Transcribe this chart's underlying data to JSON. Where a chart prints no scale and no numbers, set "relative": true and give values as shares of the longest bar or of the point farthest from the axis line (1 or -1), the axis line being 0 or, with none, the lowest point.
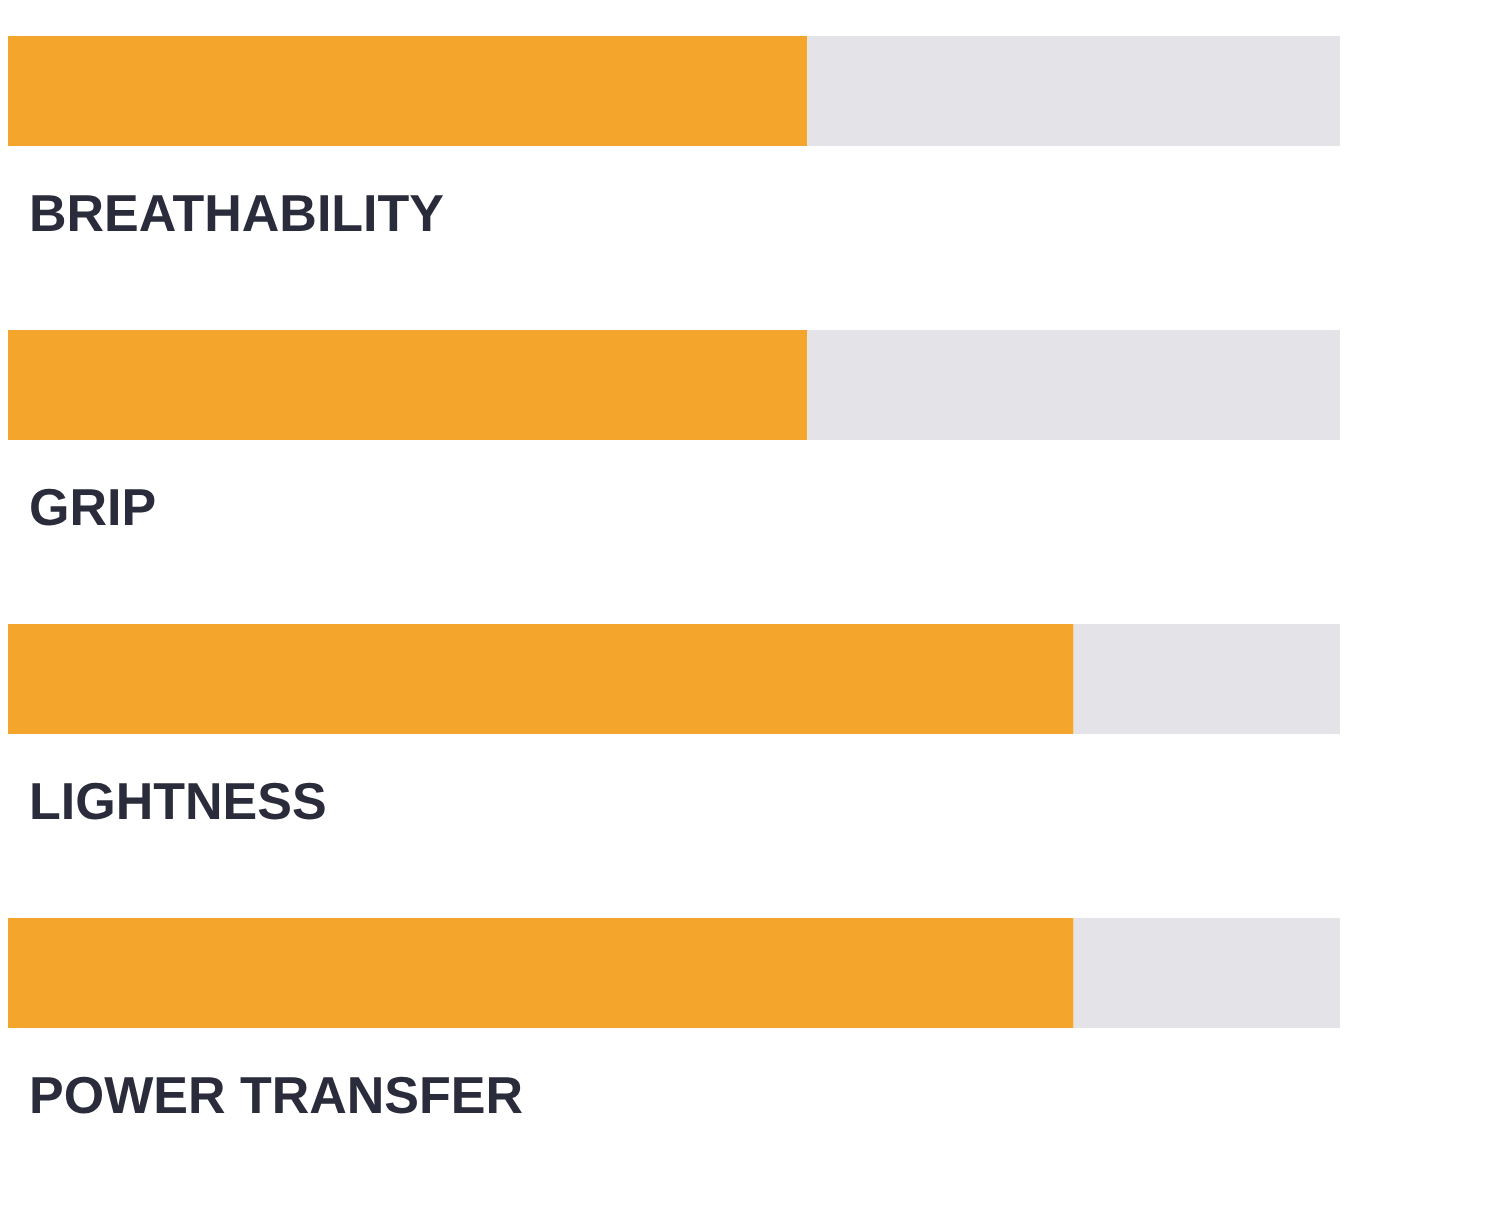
{
  "chart_data": {
    "type": "bar",
    "orientation": "horizontal",
    "stacked": true,
    "relative": true,
    "categories": [
      "BREATHABILITY",
      "GRIP",
      "LIGHTNESS",
      "POWER TRANSFER"
    ],
    "series": [
      {
        "color": "#f4a52c",
        "values": [
          0.6,
          0.6,
          0.8,
          0.8
        ]
      },
      {
        "color": "#e3e3e8",
        "values": [
          0.4,
          0.4,
          0.2,
          0.2
        ]
      }
    ]
  }
}
